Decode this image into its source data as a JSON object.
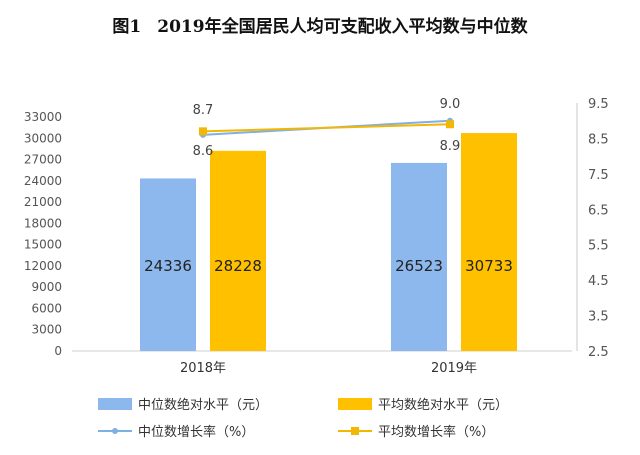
{
  "figure_label": "图1",
  "title": "2019年全国居民人均可支配收入平均数与中位数",
  "colors": {
    "median_bar": "#8DB8EE",
    "mean_bar": "#FFC000",
    "median_line": "#7EB0E3",
    "mean_line": "#F2B705"
  },
  "chart_data": {
    "type": "bar",
    "categories": [
      "2018年",
      "2019年"
    ],
    "series": [
      {
        "name": "中位数绝对水平（元）",
        "kind": "bar",
        "axis": "left",
        "values": [
          24336,
          26523
        ]
      },
      {
        "name": "平均数绝对水平（元）",
        "kind": "bar",
        "axis": "left",
        "values": [
          28228,
          30733
        ]
      },
      {
        "name": "中位数增长率（%）",
        "kind": "line",
        "axis": "right",
        "values": [
          8.6,
          9.0
        ]
      },
      {
        "name": "平均数增长率（%）",
        "kind": "line",
        "axis": "right",
        "values": [
          8.7,
          8.9
        ]
      }
    ],
    "left_axis": {
      "min": 0,
      "max": 33000,
      "ticks": [
        "0",
        "3000",
        "6000",
        "9000",
        "12000",
        "15000",
        "18000",
        "21000",
        "24000",
        "27000",
        "30000",
        "33000"
      ]
    },
    "right_axis": {
      "min": 2.5,
      "max": 9.5,
      "ticks": [
        "2.5",
        "3.5",
        "4.5",
        "5.5",
        "6.5",
        "7.5",
        "8.5",
        "9.5"
      ]
    },
    "grid": false,
    "legend": "bottom"
  }
}
